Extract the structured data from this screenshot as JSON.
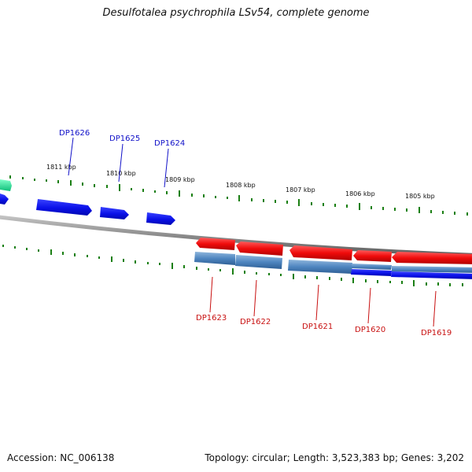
{
  "title": "Desulfotalea psychrophila LSv54, complete genome",
  "footer": {
    "accession": "Accession: NC_006138",
    "summary": "Topology: circular; Length: 3,523,383 bp; Genes: 3,202"
  },
  "colors": {
    "forward_gene": "#0a10e8",
    "reverse_gene": "#f00c0c",
    "cds_steel": "#4f86c0",
    "backbone": "#8a8a8a",
    "tick": "#1b7f14",
    "forward_label": "#1010c8",
    "reverse_label": "#c81010"
  },
  "ruler": {
    "labels": [
      "1811 kbp",
      "1810 kbp",
      "1809 kbp",
      "1808 kbp",
      "1807 kbp",
      "1806 kbp",
      "1805 kbp"
    ]
  },
  "forward_genes": [
    {
      "id": "DP1626",
      "label": "DP1626"
    },
    {
      "id": "DP1625",
      "label": "DP1625"
    },
    {
      "id": "DP1624",
      "label": "DP1624"
    }
  ],
  "reverse_genes": [
    {
      "id": "DP1623",
      "label": "DP1623"
    },
    {
      "id": "DP1622",
      "label": "DP1622"
    },
    {
      "id": "DP1621",
      "label": "DP1621"
    },
    {
      "id": "DP1620",
      "label": "DP1620"
    },
    {
      "id": "DP1619",
      "label": "DP1619"
    }
  ]
}
